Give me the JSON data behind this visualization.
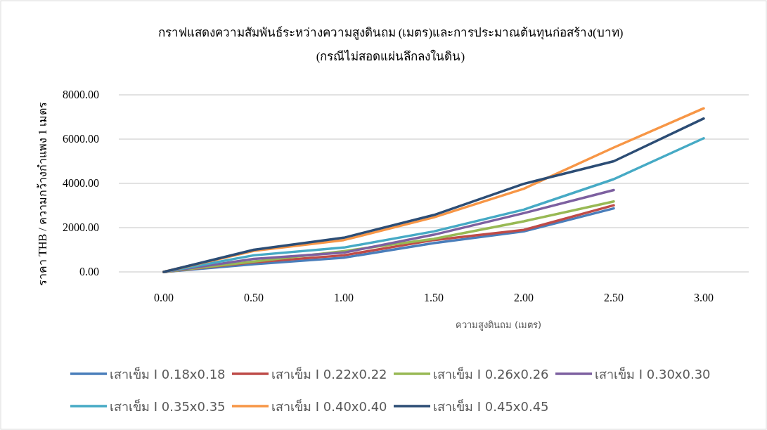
{
  "chart_data": {
    "type": "line",
    "title": "กราฟแสดงความสัมพันธ์ระหว่างความสูงดินถม (เมตร)และการประมาณต้นทุนก่อสร้าง(บาท)",
    "subtitle": "(กรณีไม่สอดแผ่นลึกลงในดิน)",
    "xlabel": "ความสูงดินถม (เมตร)",
    "ylabel": "ราคา THB / ความกว้างกำแพง 1 เมตร",
    "categories": [
      "0.00",
      "0.50",
      "1.00",
      "1.50",
      "2.00",
      "2.50",
      "3.00"
    ],
    "series": [
      {
        "name": "เสาเข็ม I 0.18x0.18",
        "color": "#4a7ebb",
        "values": [
          0,
          350,
          645,
          1300,
          1830,
          2870,
          null
        ]
      },
      {
        "name": "เสาเข็ม I 0.22x0.22",
        "color": "#be4b48",
        "values": [
          0,
          435,
          750,
          1440,
          1895,
          3010,
          null
        ]
      },
      {
        "name": "เสาเข็ม I 0.26x0.26",
        "color": "#98b954",
        "values": [
          0,
          465,
          940,
          1490,
          2285,
          3185,
          null
        ]
      },
      {
        "name": "เสาเข็ม I 0.30x0.30",
        "color": "#7d60a0",
        "values": [
          0,
          590,
          870,
          1680,
          2655,
          3700,
          null
        ]
      },
      {
        "name": "เสาเข็ม I 0.35x0.35",
        "color": "#46aac5",
        "values": [
          0,
          750,
          1100,
          1830,
          2815,
          4190,
          6040
        ]
      },
      {
        "name": "เสาเข็ม I 0.40x0.40",
        "color": "#f79646",
        "values": [
          0,
          950,
          1440,
          2465,
          3760,
          5620,
          7390
        ]
      },
      {
        "name": "เสาเข็ม I 0.45x0.45",
        "color": "#2c4d75",
        "values": [
          0,
          1000,
          1545,
          2570,
          3980,
          5000,
          6930
        ]
      }
    ],
    "ylim": [
      0,
      8000
    ],
    "yticks": [
      {
        "value": 0,
        "label": "0.00"
      },
      {
        "value": 2000,
        "label": "2000.00"
      },
      {
        "value": 4000,
        "label": "4000.00"
      },
      {
        "value": 6000,
        "label": "6000.00"
      },
      {
        "value": 8000,
        "label": "8000.00"
      }
    ],
    "grid": "y",
    "legend": "bottom",
    "marker": "none",
    "line_style": "solid"
  }
}
